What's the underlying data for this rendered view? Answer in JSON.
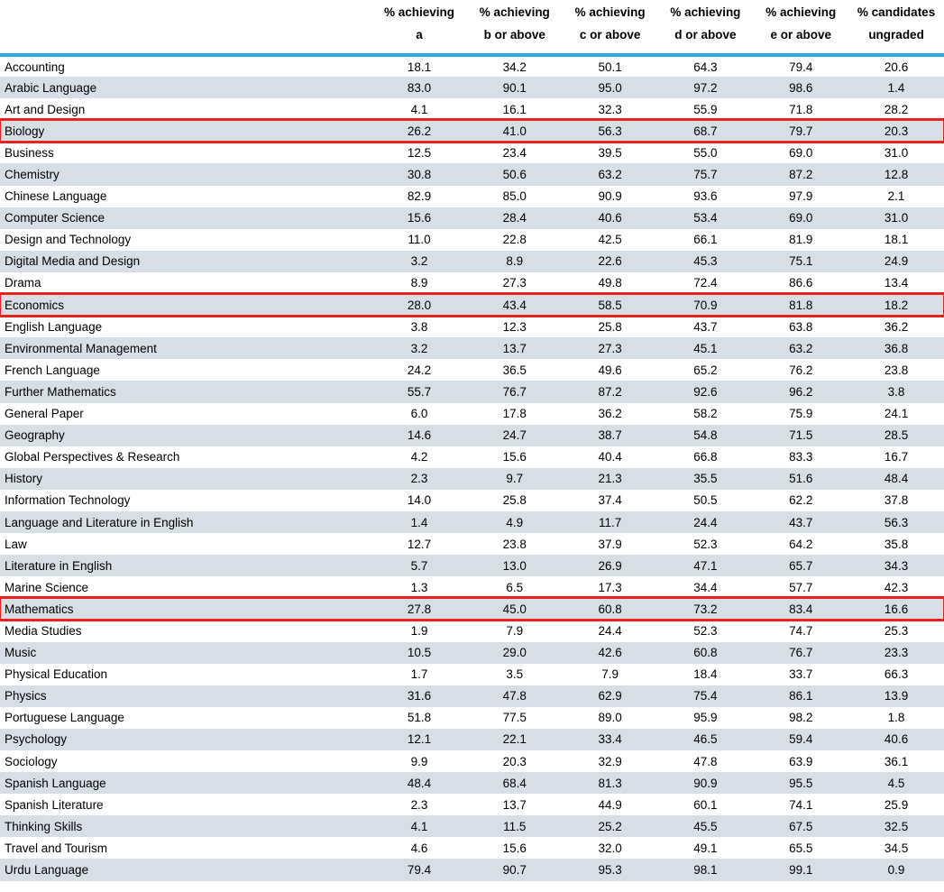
{
  "colors": {
    "header_rule": "#29ABE2",
    "row_stripe": "#D7DEE6",
    "highlight_border": "#E8231D",
    "text": "#000000",
    "background": "#FFFFFF"
  },
  "table": {
    "columns": [
      {
        "line1": "% achieving",
        "line2": "a"
      },
      {
        "line1": "% achieving",
        "line2": "b or above"
      },
      {
        "line1": "% achieving",
        "line2": "c or above"
      },
      {
        "line1": "% achieving",
        "line2": "d or above"
      },
      {
        "line1": "% achieving",
        "line2": "e or above"
      },
      {
        "line1": "% candidates",
        "line2": "ungraded"
      }
    ],
    "rows": [
      {
        "subject": "Accounting",
        "values": [
          "18.1",
          "34.2",
          "50.1",
          "64.3",
          "79.4",
          "20.6"
        ],
        "highlighted": false
      },
      {
        "subject": "Arabic Language",
        "values": [
          "83.0",
          "90.1",
          "95.0",
          "97.2",
          "98.6",
          "1.4"
        ],
        "highlighted": false
      },
      {
        "subject": "Art and Design",
        "values": [
          "4.1",
          "16.1",
          "32.3",
          "55.9",
          "71.8",
          "28.2"
        ],
        "highlighted": false
      },
      {
        "subject": "Biology",
        "values": [
          "26.2",
          "41.0",
          "56.3",
          "68.7",
          "79.7",
          "20.3"
        ],
        "highlighted": true
      },
      {
        "subject": "Business",
        "values": [
          "12.5",
          "23.4",
          "39.5",
          "55.0",
          "69.0",
          "31.0"
        ],
        "highlighted": false
      },
      {
        "subject": "Chemistry",
        "values": [
          "30.8",
          "50.6",
          "63.2",
          "75.7",
          "87.2",
          "12.8"
        ],
        "highlighted": false
      },
      {
        "subject": "Chinese Language",
        "values": [
          "82.9",
          "85.0",
          "90.9",
          "93.6",
          "97.9",
          "2.1"
        ],
        "highlighted": false
      },
      {
        "subject": "Computer Science",
        "values": [
          "15.6",
          "28.4",
          "40.6",
          "53.4",
          "69.0",
          "31.0"
        ],
        "highlighted": false
      },
      {
        "subject": "Design and Technology",
        "values": [
          "11.0",
          "22.8",
          "42.5",
          "66.1",
          "81.9",
          "18.1"
        ],
        "highlighted": false
      },
      {
        "subject": "Digital Media and Design",
        "values": [
          "3.2",
          "8.9",
          "22.6",
          "45.3",
          "75.1",
          "24.9"
        ],
        "highlighted": false
      },
      {
        "subject": "Drama",
        "values": [
          "8.9",
          "27.3",
          "49.8",
          "72.4",
          "86.6",
          "13.4"
        ],
        "highlighted": false
      },
      {
        "subject": "Economics",
        "values": [
          "28.0",
          "43.4",
          "58.5",
          "70.9",
          "81.8",
          "18.2"
        ],
        "highlighted": true
      },
      {
        "subject": "English Language",
        "values": [
          "3.8",
          "12.3",
          "25.8",
          "43.7",
          "63.8",
          "36.2"
        ],
        "highlighted": false
      },
      {
        "subject": "Environmental Management",
        "values": [
          "3.2",
          "13.7",
          "27.3",
          "45.1",
          "63.2",
          "36.8"
        ],
        "highlighted": false
      },
      {
        "subject": "French Language",
        "values": [
          "24.2",
          "36.5",
          "49.6",
          "65.2",
          "76.2",
          "23.8"
        ],
        "highlighted": false
      },
      {
        "subject": "Further Mathematics",
        "values": [
          "55.7",
          "76.7",
          "87.2",
          "92.6",
          "96.2",
          "3.8"
        ],
        "highlighted": false
      },
      {
        "subject": "General Paper",
        "values": [
          "6.0",
          "17.8",
          "36.2",
          "58.2",
          "75.9",
          "24.1"
        ],
        "highlighted": false
      },
      {
        "subject": "Geography",
        "values": [
          "14.6",
          "24.7",
          "38.7",
          "54.8",
          "71.5",
          "28.5"
        ],
        "highlighted": false
      },
      {
        "subject": "Global Perspectives & Research",
        "values": [
          "4.2",
          "15.6",
          "40.4",
          "66.8",
          "83.3",
          "16.7"
        ],
        "highlighted": false
      },
      {
        "subject": "History",
        "values": [
          "2.3",
          "9.7",
          "21.3",
          "35.5",
          "51.6",
          "48.4"
        ],
        "highlighted": false
      },
      {
        "subject": "Information Technology",
        "values": [
          "14.0",
          "25.8",
          "37.4",
          "50.5",
          "62.2",
          "37.8"
        ],
        "highlighted": false
      },
      {
        "subject": "Language and Literature in English",
        "values": [
          "1.4",
          "4.9",
          "11.7",
          "24.4",
          "43.7",
          "56.3"
        ],
        "highlighted": false
      },
      {
        "subject": "Law",
        "values": [
          "12.7",
          "23.8",
          "37.9",
          "52.3",
          "64.2",
          "35.8"
        ],
        "highlighted": false
      },
      {
        "subject": "Literature in English",
        "values": [
          "5.7",
          "13.0",
          "26.9",
          "47.1",
          "65.7",
          "34.3"
        ],
        "highlighted": false
      },
      {
        "subject": "Marine Science",
        "values": [
          "1.3",
          "6.5",
          "17.3",
          "34.4",
          "57.7",
          "42.3"
        ],
        "highlighted": false
      },
      {
        "subject": "Mathematics",
        "values": [
          "27.8",
          "45.0",
          "60.8",
          "73.2",
          "83.4",
          "16.6"
        ],
        "highlighted": true
      },
      {
        "subject": "Media Studies",
        "values": [
          "1.9",
          "7.9",
          "24.4",
          "52.3",
          "74.7",
          "25.3"
        ],
        "highlighted": false
      },
      {
        "subject": "Music",
        "values": [
          "10.5",
          "29.0",
          "42.6",
          "60.8",
          "76.7",
          "23.3"
        ],
        "highlighted": false
      },
      {
        "subject": "Physical Education",
        "values": [
          "1.7",
          "3.5",
          "7.9",
          "18.4",
          "33.7",
          "66.3"
        ],
        "highlighted": false
      },
      {
        "subject": "Physics",
        "values": [
          "31.6",
          "47.8",
          "62.9",
          "75.4",
          "86.1",
          "13.9"
        ],
        "highlighted": false
      },
      {
        "subject": "Portuguese Language",
        "values": [
          "51.8",
          "77.5",
          "89.0",
          "95.9",
          "98.2",
          "1.8"
        ],
        "highlighted": false
      },
      {
        "subject": "Psychology",
        "values": [
          "12.1",
          "22.1",
          "33.4",
          "46.5",
          "59.4",
          "40.6"
        ],
        "highlighted": false
      },
      {
        "subject": "Sociology",
        "values": [
          "9.9",
          "20.3",
          "32.9",
          "47.8",
          "63.9",
          "36.1"
        ],
        "highlighted": false
      },
      {
        "subject": "Spanish Language",
        "values": [
          "48.4",
          "68.4",
          "81.3",
          "90.9",
          "95.5",
          "4.5"
        ],
        "highlighted": false
      },
      {
        "subject": "Spanish Literature",
        "values": [
          "2.3",
          "13.7",
          "44.9",
          "60.1",
          "74.1",
          "25.9"
        ],
        "highlighted": false
      },
      {
        "subject": "Thinking Skills",
        "values": [
          "4.1",
          "11.5",
          "25.2",
          "45.5",
          "67.5",
          "32.5"
        ],
        "highlighted": false
      },
      {
        "subject": "Travel and Tourism",
        "values": [
          "4.6",
          "15.6",
          "32.0",
          "49.1",
          "65.5",
          "34.5"
        ],
        "highlighted": false
      },
      {
        "subject": "Urdu Language",
        "values": [
          "79.4",
          "90.7",
          "95.3",
          "98.1",
          "99.1",
          "0.9"
        ],
        "highlighted": false
      }
    ]
  }
}
